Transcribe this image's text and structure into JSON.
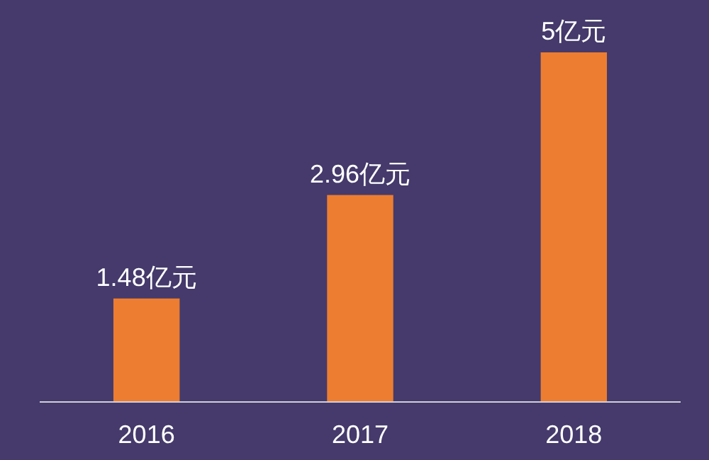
{
  "chart_data": {
    "type": "bar",
    "categories": [
      "2016",
      "2017",
      "2018"
    ],
    "values": [
      1.48,
      2.96,
      5
    ],
    "value_labels": [
      "1.48亿元",
      "2.96亿元",
      "5亿元"
    ],
    "color": "#ed7d31"
  }
}
